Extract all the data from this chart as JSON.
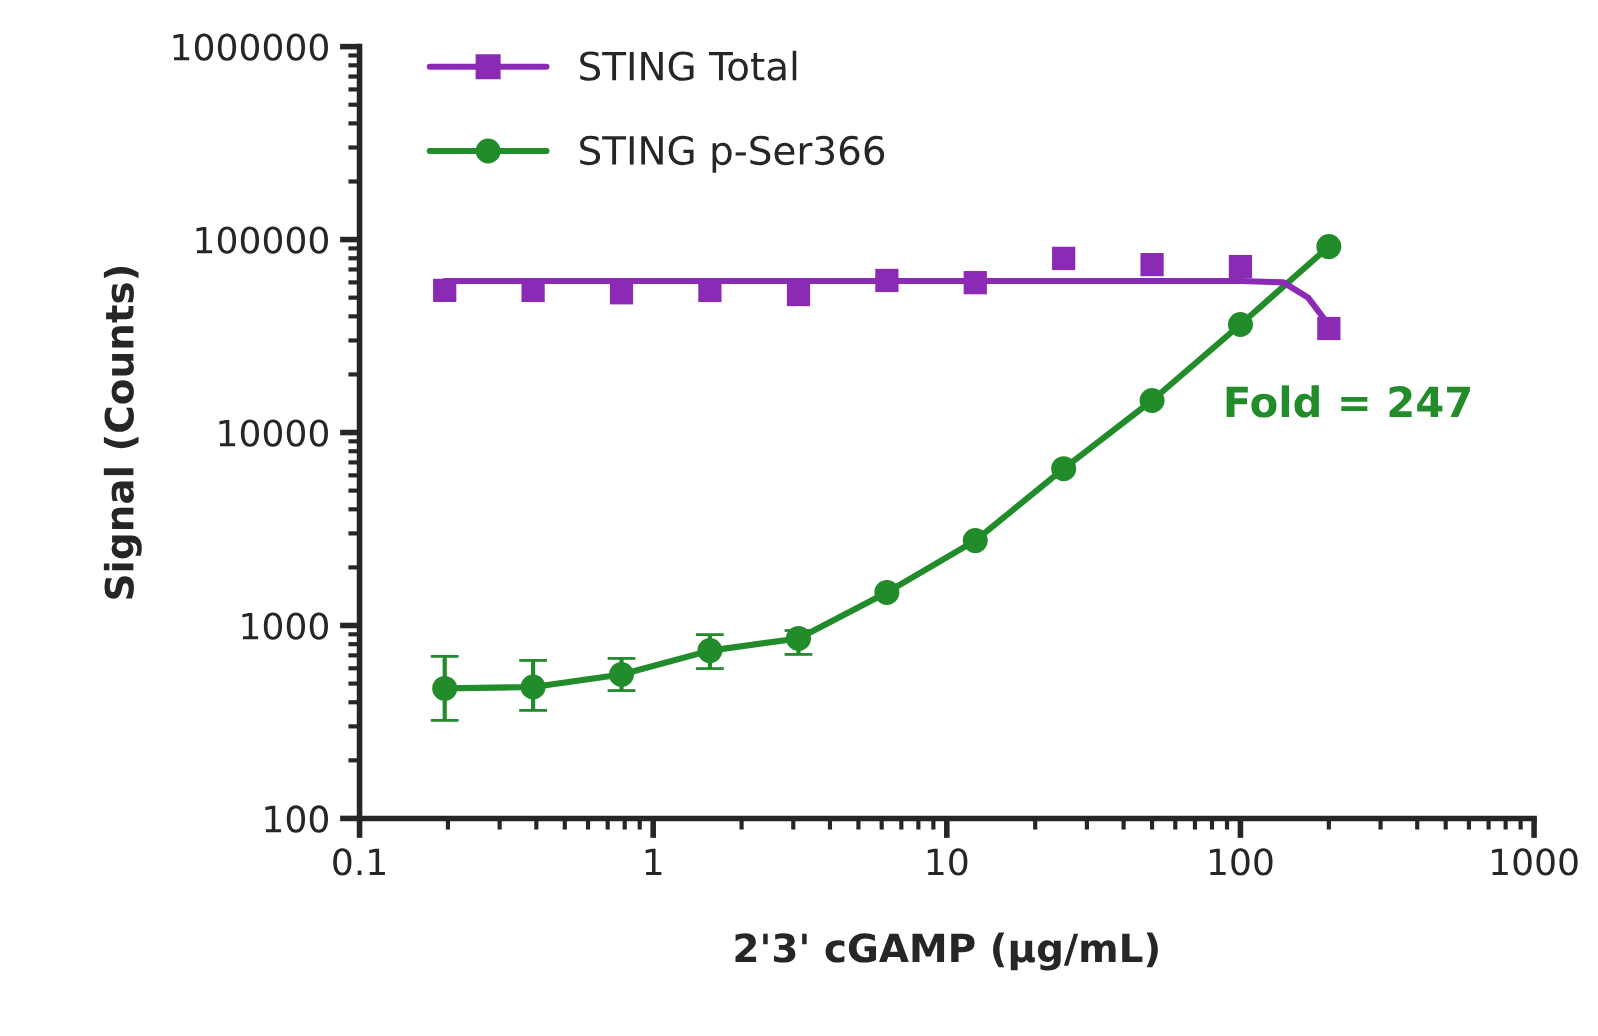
{
  "chart_data": {
    "type": "scatter",
    "xlabel": "2'3' cGAMP (µg/mL)",
    "ylabel": "Signal (Counts)",
    "log": "xy",
    "xlim": [
      0.1,
      1000
    ],
    "xticks": [
      0.1,
      1,
      10,
      100,
      1000
    ],
    "ylim": [
      100,
      1000000
    ],
    "yticks": [
      100,
      1000,
      10000,
      100000,
      1000000
    ],
    "legend": "top left",
    "grid": false,
    "annotations": [
      "Fold = 247"
    ],
    "series": [
      {
        "name": "STING Total",
        "marker": "square",
        "color": "#8b2ab5",
        "x": [
          0.195,
          0.39,
          0.78,
          1.56,
          3.125,
          6.25,
          12.5,
          25,
          50,
          100,
          200
        ],
        "values": [
          54500,
          54500,
          53000,
          54500,
          51900,
          61400,
          59800,
          79800,
          74200,
          72400,
          34600
        ]
      },
      {
        "name": "STING p-Ser366",
        "type": "line",
        "marker": "circle",
        "color": "#228b2a",
        "x": [
          0.195,
          0.39,
          0.78,
          1.56,
          3.125,
          6.25,
          12.5,
          25,
          50,
          100,
          200
        ],
        "values": [
          472,
          480,
          557,
          741,
          857,
          1483,
          2754,
          6500,
          14650,
          36300,
          92000
        ],
        "errors": [
          [
            322,
            692
          ],
          [
            363,
            659
          ],
          [
            460,
            675
          ],
          [
            598,
            897
          ],
          [
            708,
            942
          ],
          null,
          null,
          null,
          null,
          null,
          null
        ]
      },
      {
        "type": "line",
        "marker": "none",
        "color": "#8b2ab5",
        "x": [
          0.195,
          25,
          100,
          140,
          170,
          200
        ],
        "values": [
          61000,
          61000,
          61000,
          60000,
          50000,
          36000
        ]
      }
    ]
  }
}
